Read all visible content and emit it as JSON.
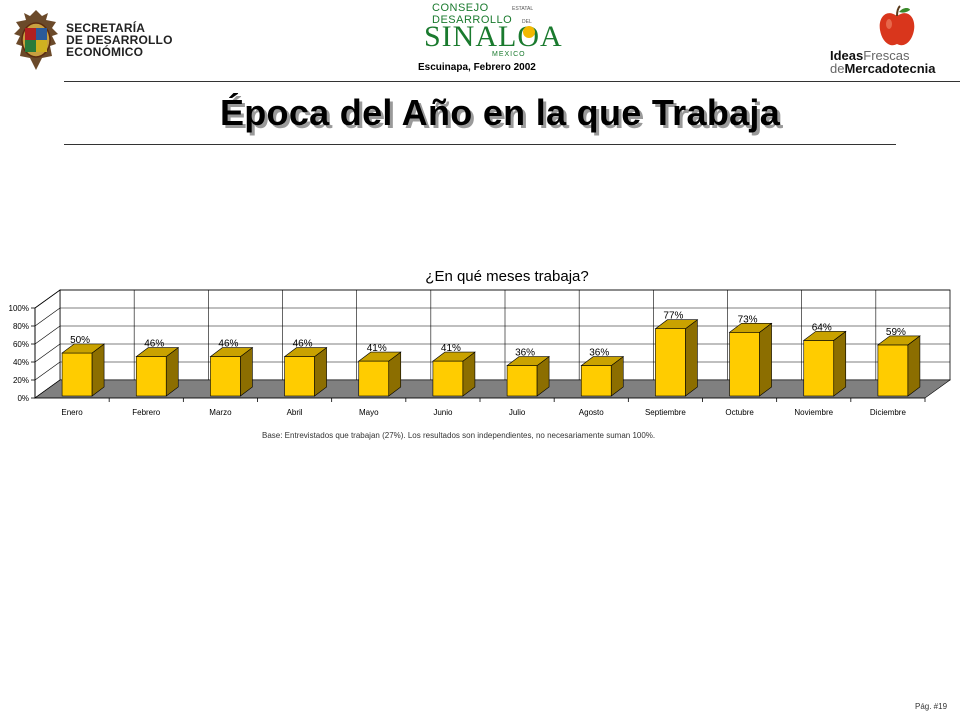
{
  "header": {
    "left_logo": {
      "lines": [
        "SECRETARÍA",
        "DE DESARROLLO",
        "ECONÓMICO"
      ]
    },
    "center_logo": {
      "line1": "CONSEJO",
      "line1_small": "ESTATAL",
      "line2": "DESARROLLO",
      "line2_small": "DEL",
      "brand": "SINALOA",
      "country": "MEXICO"
    },
    "subtitle": "Escuinapa, Febrero 2002",
    "right_logo": {
      "ideas": "Ideas",
      "frescas": "Frescas",
      "de": "de",
      "mercadotecnia": "Mercadotecnia"
    }
  },
  "title": "Época del Año en la que Trabaja",
  "base_note": "Base:  Entrevistados que trabajan (27%). Los resultados son independientes, no necesariamente suman 100%.",
  "page_number": "Pág. #19",
  "chart_data": {
    "type": "bar",
    "title": "¿En qué meses trabaja?",
    "categories": [
      "Enero",
      "Febrero",
      "Marzo",
      "Abril",
      "Mayo",
      "Junio",
      "Julio",
      "Agosto",
      "Septiembre",
      "Octubre",
      "Noviembre",
      "Diciembre"
    ],
    "values": [
      50,
      46,
      46,
      46,
      41,
      41,
      36,
      36,
      77,
      73,
      64,
      59
    ],
    "data_labels": [
      "50%",
      "46%",
      "46%",
      "46%",
      "41%",
      "41%",
      "36%",
      "36%",
      "77%",
      "73%",
      "64%",
      "59%"
    ],
    "yticks": [
      "0%",
      "20%",
      "40%",
      "60%",
      "80%",
      "100%"
    ],
    "ylim": [
      0,
      100
    ],
    "grid": true,
    "style": "3d",
    "bar_color": "#FFCC00",
    "bar_side_color": "#8C6E00",
    "bar_top_color": "#C9A200",
    "floor_color": "#808080"
  }
}
